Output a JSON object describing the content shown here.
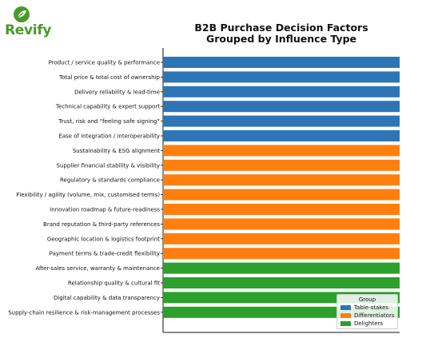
{
  "brand": {
    "name": "Revify",
    "color": "#4a9a2a"
  },
  "chart_data": {
    "type": "bar",
    "orientation": "horizontal",
    "title": "B2B Purchase Decision Factors",
    "subtitle": "Grouped by Influence Type",
    "categories": [
      "Product / service quality & performance",
      "Total price & total cost of ownership",
      "Delivery reliability & lead-time",
      "Technical capability & expert support",
      "Trust, risk and “feeling safe signing”",
      "Ease of integration / interoperability",
      "Sustainability & ESG alignment",
      "Supplier financial stability & visibility",
      "Regulatory & standards compliance",
      "Flexibility / agility (volume, mix, customised terms)",
      "Innovation roadmap & future-readiness",
      "Brand reputation & third-party references",
      "Geographic location & logistics footprint",
      "Payment terms & trade-credit flexibility",
      "After-sales service, warranty & maintenance",
      "Relationship quality & cultural fit",
      "Digital capability & data transparency",
      "Supply-chain resilience & risk-management processes"
    ],
    "values": [
      1,
      1,
      1,
      1,
      1,
      1,
      1,
      1,
      1,
      1,
      1,
      1,
      1,
      1,
      1,
      1,
      1,
      1
    ],
    "groups": [
      "Table-stakes",
      "Table-stakes",
      "Table-stakes",
      "Table-stakes",
      "Table-stakes",
      "Table-stakes",
      "Differentiators",
      "Differentiators",
      "Differentiators",
      "Differentiators",
      "Differentiators",
      "Differentiators",
      "Differentiators",
      "Differentiators",
      "Delighters",
      "Delighters",
      "Delighters",
      "Delighters"
    ],
    "xlim": [
      0,
      1
    ],
    "grid": false,
    "legend": {
      "title": "Group",
      "placement": "bottom-right",
      "entries": [
        {
          "name": "Table-stakes",
          "color": "#2e75b6"
        },
        {
          "name": "Differentiators",
          "color": "#ff7f0e"
        },
        {
          "name": "Delighters",
          "color": "#2ca02c"
        }
      ]
    }
  }
}
